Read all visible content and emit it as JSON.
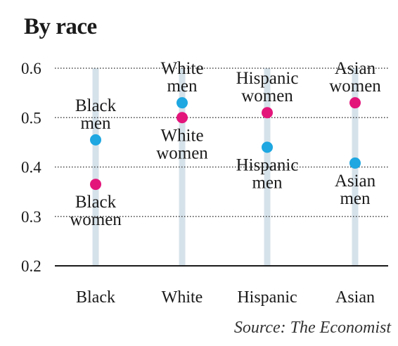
{
  "chart_data": {
    "type": "scatter",
    "title": "By race",
    "categories": [
      "Black",
      "White",
      "Hispanic",
      "Asian"
    ],
    "yticks": [
      "0.2",
      "0.3",
      "0.4",
      "0.5",
      "0.6"
    ],
    "ylim": [
      0.2,
      0.6
    ],
    "grid": true,
    "series": [
      {
        "values": [
          0.455,
          0.53,
          0.44,
          0.408
        ],
        "labels": [
          [
            "Black",
            "men"
          ],
          [
            "White",
            "men"
          ],
          [
            "Hispanic",
            "men"
          ],
          [
            "Asian",
            "men"
          ]
        ],
        "label_position": [
          "above",
          "above",
          "below",
          "below"
        ]
      },
      {
        "values": [
          0.365,
          0.5,
          0.51,
          0.53
        ],
        "labels": [
          [
            "Black",
            "women"
          ],
          [
            "White",
            "women"
          ],
          [
            "Hispanic",
            "women"
          ],
          [
            "Asian",
            "women"
          ]
        ],
        "label_position": [
          "below",
          "below",
          "above",
          "above"
        ]
      }
    ],
    "colors": {
      "men": "#1ea7e1",
      "women": "#e3157b",
      "stem": "#d6e2ea",
      "grid": "#444444"
    }
  },
  "source": "Source: The Economist"
}
